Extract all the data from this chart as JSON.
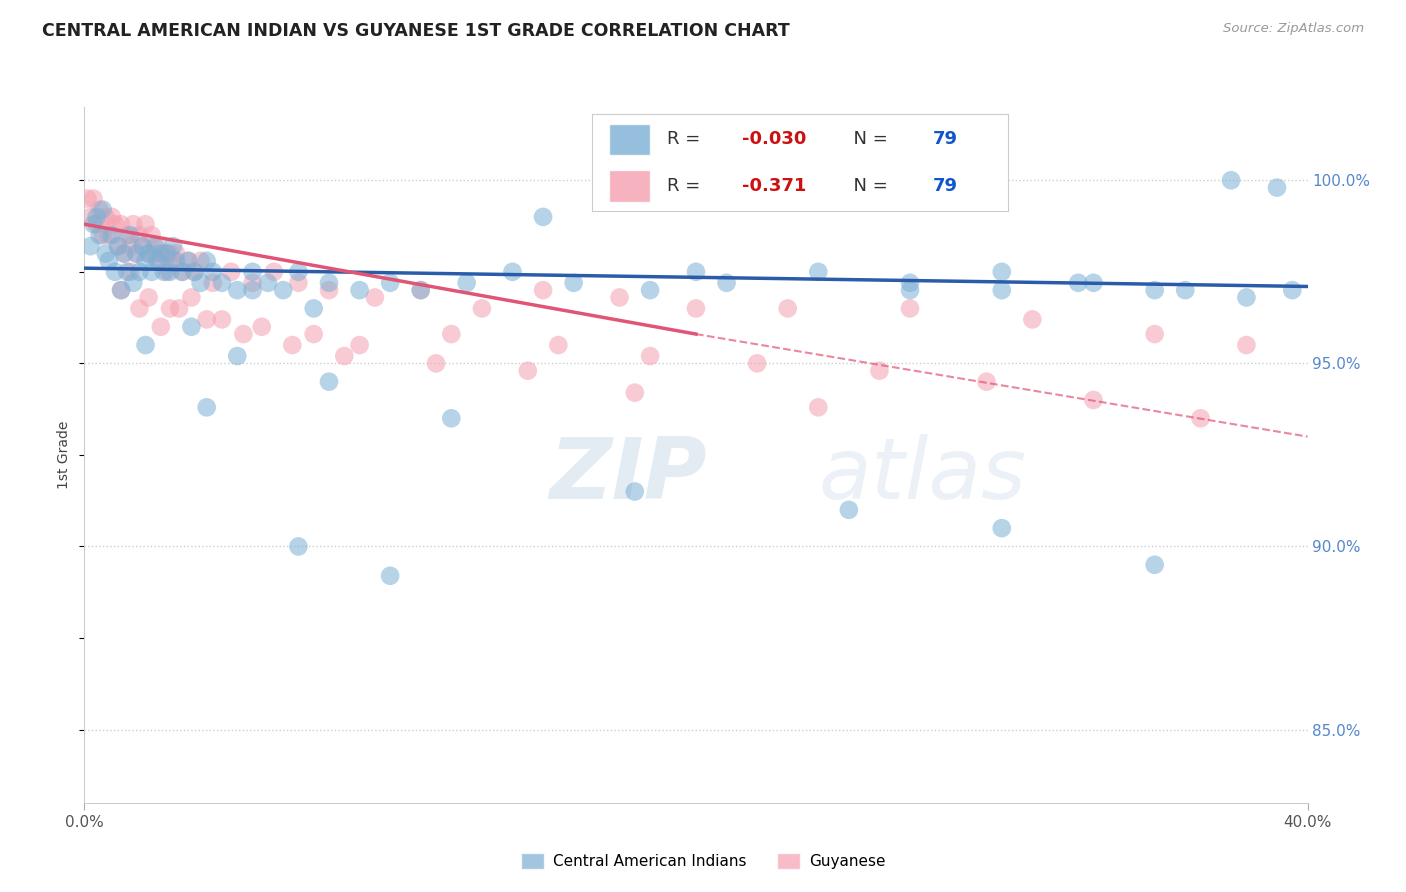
{
  "title": "CENTRAL AMERICAN INDIAN VS GUYANESE 1ST GRADE CORRELATION CHART",
  "source": "Source: ZipAtlas.com",
  "ylabel": "1st Grade",
  "ylabel_right_ticks": [
    100.0,
    95.0,
    90.0,
    85.0
  ],
  "xlim": [
    0.0,
    40.0
  ],
  "ylim": [
    83.0,
    102.0
  ],
  "R_blue": -0.03,
  "R_pink": -0.371,
  "N": 79,
  "blue_color": "#7bafd4",
  "pink_color": "#f4a0b0",
  "blue_line_color": "#2a5caa",
  "pink_line_color": "#e05575",
  "legend_label_blue": "Central American Indians",
  "legend_label_pink": "Guyanese",
  "watermark_zip": "ZIP",
  "watermark_atlas": "atlas",
  "blue_scatter_x": [
    0.2,
    0.3,
    0.4,
    0.5,
    0.6,
    0.7,
    0.8,
    0.9,
    1.0,
    1.1,
    1.2,
    1.3,
    1.4,
    1.5,
    1.6,
    1.7,
    1.8,
    1.9,
    2.0,
    2.1,
    2.2,
    2.3,
    2.4,
    2.5,
    2.6,
    2.7,
    2.8,
    2.9,
    3.0,
    3.2,
    3.4,
    3.6,
    3.8,
    4.0,
    4.2,
    4.5,
    5.0,
    5.5,
    6.0,
    6.5,
    7.0,
    8.0,
    9.0,
    10.0,
    11.0,
    12.5,
    14.0,
    16.0,
    18.5,
    21.0,
    24.0,
    27.0,
    30.0,
    33.0,
    36.0,
    37.5,
    39.0,
    5.5,
    7.5,
    15.0,
    20.0,
    27.0,
    30.0,
    32.5,
    35.0,
    38.0,
    3.5,
    5.0,
    8.0,
    12.0,
    18.0,
    25.0,
    30.0,
    35.0,
    39.5,
    2.0,
    4.0,
    7.0,
    10.0
  ],
  "blue_scatter_y": [
    98.2,
    98.8,
    99.0,
    98.5,
    99.2,
    98.0,
    97.8,
    98.5,
    97.5,
    98.2,
    97.0,
    98.0,
    97.5,
    98.5,
    97.2,
    98.0,
    97.5,
    98.2,
    97.8,
    98.0,
    97.5,
    98.2,
    97.8,
    98.0,
    97.5,
    98.0,
    97.5,
    98.2,
    97.8,
    97.5,
    97.8,
    97.5,
    97.2,
    97.8,
    97.5,
    97.2,
    97.0,
    97.5,
    97.2,
    97.0,
    97.5,
    97.2,
    97.0,
    97.2,
    97.0,
    97.2,
    97.5,
    97.2,
    97.0,
    97.2,
    97.5,
    97.2,
    97.0,
    97.2,
    97.0,
    100.0,
    99.8,
    97.0,
    96.5,
    99.0,
    97.5,
    97.0,
    97.5,
    97.2,
    97.0,
    96.8,
    96.0,
    95.2,
    94.5,
    93.5,
    91.5,
    91.0,
    90.5,
    89.5,
    97.0,
    95.5,
    93.8,
    90.0,
    89.2
  ],
  "pink_scatter_x": [
    0.1,
    0.2,
    0.3,
    0.4,
    0.5,
    0.6,
    0.7,
    0.8,
    0.9,
    1.0,
    1.1,
    1.2,
    1.3,
    1.4,
    1.5,
    1.6,
    1.7,
    1.8,
    1.9,
    2.0,
    2.1,
    2.2,
    2.3,
    2.4,
    2.5,
    2.6,
    2.7,
    2.8,
    2.9,
    3.0,
    3.2,
    3.4,
    3.6,
    3.8,
    4.2,
    4.8,
    5.5,
    6.2,
    7.0,
    8.0,
    9.5,
    11.0,
    13.0,
    15.0,
    17.5,
    20.0,
    23.0,
    27.0,
    31.0,
    35.0,
    38.0,
    1.5,
    2.1,
    2.8,
    3.5,
    4.5,
    5.8,
    7.5,
    9.0,
    12.0,
    15.5,
    18.5,
    22.0,
    26.0,
    29.5,
    33.0,
    36.5,
    1.2,
    1.8,
    2.5,
    3.1,
    4.0,
    5.2,
    6.8,
    8.5,
    11.5,
    14.5,
    18.0,
    24.0
  ],
  "pink_scatter_y": [
    99.5,
    99.0,
    99.5,
    98.8,
    99.2,
    98.5,
    99.0,
    98.5,
    99.0,
    98.8,
    98.2,
    98.8,
    98.0,
    98.5,
    98.2,
    98.8,
    98.0,
    98.5,
    98.2,
    98.8,
    98.0,
    98.5,
    98.0,
    98.2,
    97.8,
    98.0,
    97.5,
    98.0,
    97.8,
    98.0,
    97.5,
    97.8,
    97.5,
    97.8,
    97.2,
    97.5,
    97.2,
    97.5,
    97.2,
    97.0,
    96.8,
    97.0,
    96.5,
    97.0,
    96.8,
    96.5,
    96.5,
    96.5,
    96.2,
    95.8,
    95.5,
    97.5,
    96.8,
    96.5,
    96.8,
    96.2,
    96.0,
    95.8,
    95.5,
    95.8,
    95.5,
    95.2,
    95.0,
    94.8,
    94.5,
    94.0,
    93.5,
    97.0,
    96.5,
    96.0,
    96.5,
    96.2,
    95.8,
    95.5,
    95.2,
    95.0,
    94.8,
    94.2,
    93.8
  ],
  "blue_line_x0": 0.0,
  "blue_line_x1": 40.0,
  "blue_line_y0": 97.6,
  "blue_line_y1": 97.1,
  "pink_solid_x0": 0.0,
  "pink_solid_x1": 20.0,
  "pink_solid_y0": 98.8,
  "pink_solid_y1": 95.8,
  "pink_dash_x0": 20.0,
  "pink_dash_x1": 40.0,
  "pink_dash_y0": 95.8,
  "pink_dash_y1": 93.0
}
